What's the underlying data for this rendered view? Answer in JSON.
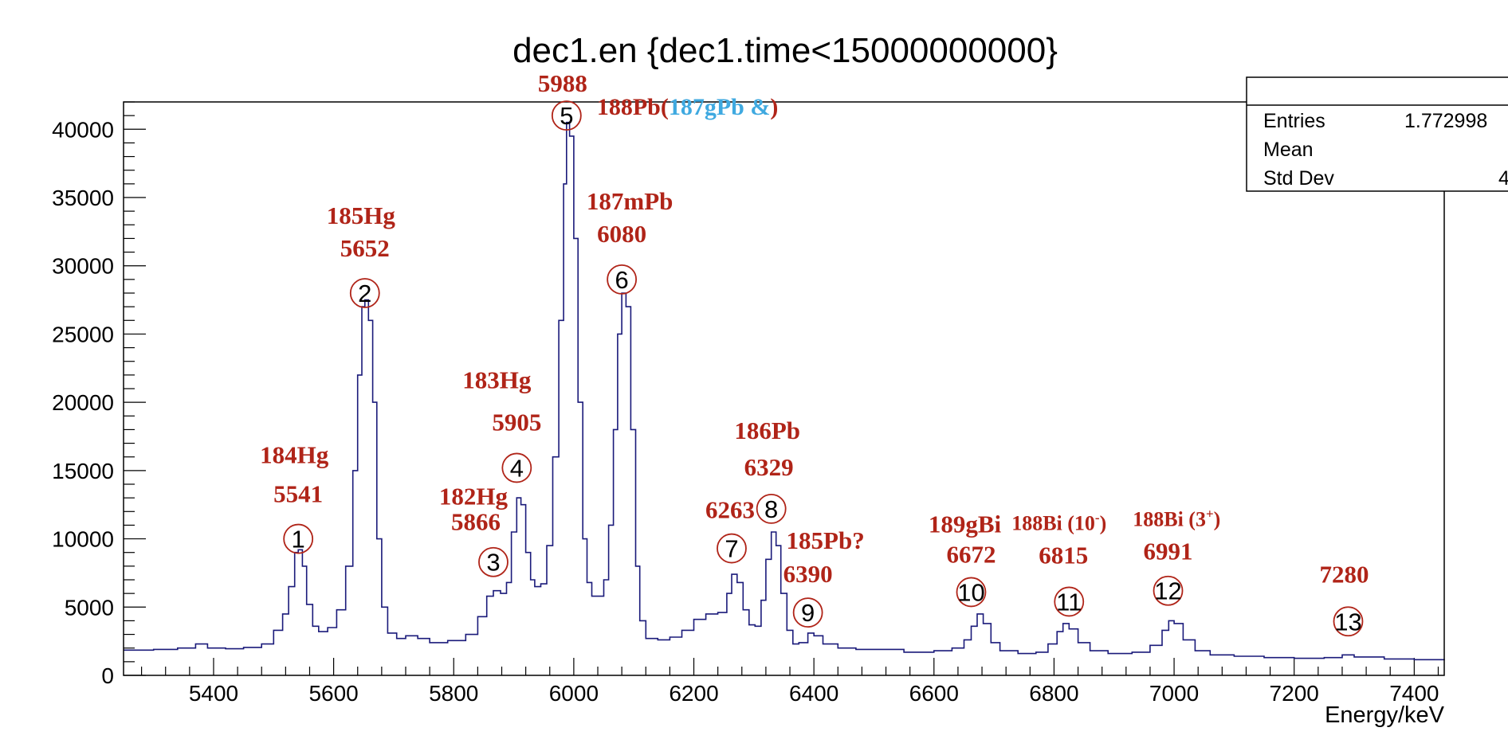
{
  "chart_data": {
    "type": "line",
    "title": "dec1.en {dec1.time<15000000000}",
    "xlabel": "Energy/keV",
    "ylabel": "",
    "xlim": [
      5250,
      7450
    ],
    "ylim": [
      0,
      42000
    ],
    "x_ticks": [
      5400,
      5600,
      5800,
      6000,
      6200,
      6400,
      6600,
      6800,
      7000,
      7200,
      7400
    ],
    "y_ticks": [
      0,
      5000,
      10000,
      15000,
      20000,
      25000,
      30000,
      35000,
      40000
    ],
    "grid": false,
    "line_color": "#1a1a7a",
    "label_color": "#b02418",
    "accent_color": "#3fa9e0",
    "stats_box": {
      "rows": [
        {
          "label": "Entries",
          "value": "1.772998"
        },
        {
          "label": "Mean",
          "value": ""
        },
        {
          "label": "Std Dev",
          "value": "4"
        }
      ]
    },
    "series": [
      {
        "values": [
          [
            5250,
            1850
          ],
          [
            5300,
            1900
          ],
          [
            5340,
            2000
          ],
          [
            5370,
            2300
          ],
          [
            5390,
            2000
          ],
          [
            5420,
            1950
          ],
          [
            5450,
            2050
          ],
          [
            5480,
            2300
          ],
          [
            5500,
            3300
          ],
          [
            5515,
            4500
          ],
          [
            5525,
            6500
          ],
          [
            5535,
            9000
          ],
          [
            5541,
            9200
          ],
          [
            5548,
            8000
          ],
          [
            5555,
            5200
          ],
          [
            5565,
            3600
          ],
          [
            5575,
            3200
          ],
          [
            5590,
            3500
          ],
          [
            5605,
            4800
          ],
          [
            5620,
            8000
          ],
          [
            5632,
            15000
          ],
          [
            5640,
            22000
          ],
          [
            5647,
            27000
          ],
          [
            5652,
            27500
          ],
          [
            5658,
            26000
          ],
          [
            5665,
            20000
          ],
          [
            5672,
            10000
          ],
          [
            5680,
            5000
          ],
          [
            5690,
            3100
          ],
          [
            5705,
            2700
          ],
          [
            5720,
            2900
          ],
          [
            5740,
            2700
          ],
          [
            5760,
            2400
          ],
          [
            5790,
            2550
          ],
          [
            5820,
            3000
          ],
          [
            5840,
            4300
          ],
          [
            5855,
            5800
          ],
          [
            5866,
            6200
          ],
          [
            5878,
            6000
          ],
          [
            5888,
            6800
          ],
          [
            5896,
            10500
          ],
          [
            5905,
            13000
          ],
          [
            5912,
            12500
          ],
          [
            5920,
            9000
          ],
          [
            5928,
            7000
          ],
          [
            5935,
            6500
          ],
          [
            5945,
            6700
          ],
          [
            5955,
            9500
          ],
          [
            5965,
            16000
          ],
          [
            5975,
            26000
          ],
          [
            5983,
            36000
          ],
          [
            5988,
            40500
          ],
          [
            5993,
            39500
          ],
          [
            6000,
            32000
          ],
          [
            6007,
            20000
          ],
          [
            6015,
            10000
          ],
          [
            6022,
            6800
          ],
          [
            6030,
            5800
          ],
          [
            6040,
            5800
          ],
          [
            6050,
            7000
          ],
          [
            6058,
            11000
          ],
          [
            6066,
            18000
          ],
          [
            6073,
            25000
          ],
          [
            6080,
            28000
          ],
          [
            6087,
            27000
          ],
          [
            6095,
            18000
          ],
          [
            6103,
            8000
          ],
          [
            6110,
            4000
          ],
          [
            6120,
            2700
          ],
          [
            6140,
            2600
          ],
          [
            6160,
            2800
          ],
          [
            6180,
            3300
          ],
          [
            6200,
            4100
          ],
          [
            6220,
            4500
          ],
          [
            6240,
            4600
          ],
          [
            6255,
            6000
          ],
          [
            6263,
            7400
          ],
          [
            6272,
            6800
          ],
          [
            6282,
            4800
          ],
          [
            6292,
            3700
          ],
          [
            6302,
            3600
          ],
          [
            6312,
            5500
          ],
          [
            6320,
            8500
          ],
          [
            6329,
            10500
          ],
          [
            6337,
            9500
          ],
          [
            6345,
            6000
          ],
          [
            6355,
            3300
          ],
          [
            6365,
            2300
          ],
          [
            6375,
            2400
          ],
          [
            6390,
            3100
          ],
          [
            6400,
            2900
          ],
          [
            6415,
            2300
          ],
          [
            6440,
            2000
          ],
          [
            6470,
            1900
          ],
          [
            6500,
            1900
          ],
          [
            6550,
            1700
          ],
          [
            6600,
            1800
          ],
          [
            6630,
            2000
          ],
          [
            6650,
            2600
          ],
          [
            6662,
            3600
          ],
          [
            6672,
            4500
          ],
          [
            6682,
            3800
          ],
          [
            6695,
            2400
          ],
          [
            6710,
            1800
          ],
          [
            6740,
            1600
          ],
          [
            6770,
            1700
          ],
          [
            6790,
            2300
          ],
          [
            6805,
            3200
          ],
          [
            6815,
            3800
          ],
          [
            6825,
            3400
          ],
          [
            6840,
            2400
          ],
          [
            6860,
            1800
          ],
          [
            6890,
            1600
          ],
          [
            6930,
            1700
          ],
          [
            6960,
            2200
          ],
          [
            6980,
            3300
          ],
          [
            6991,
            4000
          ],
          [
            7000,
            3800
          ],
          [
            7015,
            2600
          ],
          [
            7035,
            1800
          ],
          [
            7060,
            1500
          ],
          [
            7100,
            1400
          ],
          [
            7150,
            1300
          ],
          [
            7200,
            1250
          ],
          [
            7250,
            1300
          ],
          [
            7280,
            1500
          ],
          [
            7300,
            1350
          ],
          [
            7350,
            1200
          ],
          [
            7400,
            1150
          ],
          [
            7450,
            1100
          ]
        ]
      }
    ],
    "annotations": [
      {
        "num": "1",
        "energy": 5541,
        "y": 10000,
        "lines": [
          {
            "t": "184Hg",
            "dx": -5,
            "dy": -95
          },
          {
            "t": "5541",
            "dx": 0,
            "dy": -46
          }
        ]
      },
      {
        "num": "2",
        "energy": 5652,
        "y": 28000,
        "lines": [
          {
            "t": "185Hg",
            "dx": -5,
            "dy": -87
          },
          {
            "t": "5652",
            "dx": 0,
            "dy": -46
          }
        ]
      },
      {
        "num": "3",
        "energy": 5866,
        "y": 8300,
        "lines": [
          {
            "t": "182Hg",
            "dx": -25,
            "dy": -72
          },
          {
            "t": "5866",
            "dx": -22,
            "dy": -40
          }
        ]
      },
      {
        "num": "4",
        "energy": 5905,
        "y": 15200,
        "lines": [
          {
            "t": "183Hg",
            "dx": -25,
            "dy": -100
          },
          {
            "t": "5905",
            "dx": 0,
            "dy": -47
          }
        ]
      },
      {
        "num": "5",
        "energy": 5988,
        "y": 41000,
        "lines": [
          {
            "t": "5988",
            "dx": -5,
            "dy": -30
          }
        ]
      },
      {
        "num": "6",
        "energy": 6080,
        "y": 29000,
        "lines": [
          {
            "t": "187mPb",
            "dx": 10,
            "dy": -88
          },
          {
            "t": "6080",
            "dx": 0,
            "dy": -47
          }
        ]
      },
      {
        "num": "7",
        "energy": 6263,
        "y": 9300,
        "lines": [
          {
            "t": "6263",
            "dx": -2,
            "dy": -38
          }
        ]
      },
      {
        "num": "8",
        "energy": 6329,
        "y": 12200,
        "lines": [
          {
            "t": "186Pb",
            "dx": -5,
            "dy": -88
          },
          {
            "t": "6329",
            "dx": -3,
            "dy": -42
          }
        ]
      },
      {
        "num": "9",
        "energy": 6390,
        "y": 4600,
        "lines": [
          {
            "t": "185Pb?",
            "dx": 22,
            "dy": -80
          },
          {
            "t": "6390",
            "dx": 0,
            "dy": -38
          }
        ]
      },
      {
        "num": "10",
        "energy": 6662,
        "y": 6100,
        "lines": [
          {
            "t": "189gBi",
            "dx": -8,
            "dy": -75
          },
          {
            "t": "6672",
            "dx": 0,
            "dy": -37
          }
        ]
      },
      {
        "num": "11",
        "energy": 6825,
        "y": 5400,
        "lines": [
          {
            "t": "6815",
            "dx": -7,
            "dy": -48
          }
        ]
      },
      {
        "num": "12",
        "energy": 6990,
        "y": 6200,
        "lines": [
          {
            "t": "6991",
            "dx": 0,
            "dy": -39
          }
        ]
      },
      {
        "num": "13",
        "energy": 7290,
        "y": 3950,
        "lines": [
          {
            "t": "7280",
            "dx": -5,
            "dy": -49
          }
        ]
      }
    ],
    "sup_labels": [
      {
        "base": "188Bi (10",
        "sup": "-",
        "end": ")",
        "energy": 6815,
        "y": 5400,
        "dx": -5,
        "dy": -90
      },
      {
        "base": "188Bi (3",
        "sup": "+",
        "end": ")",
        "energy": 6991,
        "y": 6200,
        "dx": 10,
        "dy": -81
      }
    ],
    "pb_label": {
      "part1": "188Pb(",
      "part2": "187gPb &",
      "part3": ")"
    }
  }
}
